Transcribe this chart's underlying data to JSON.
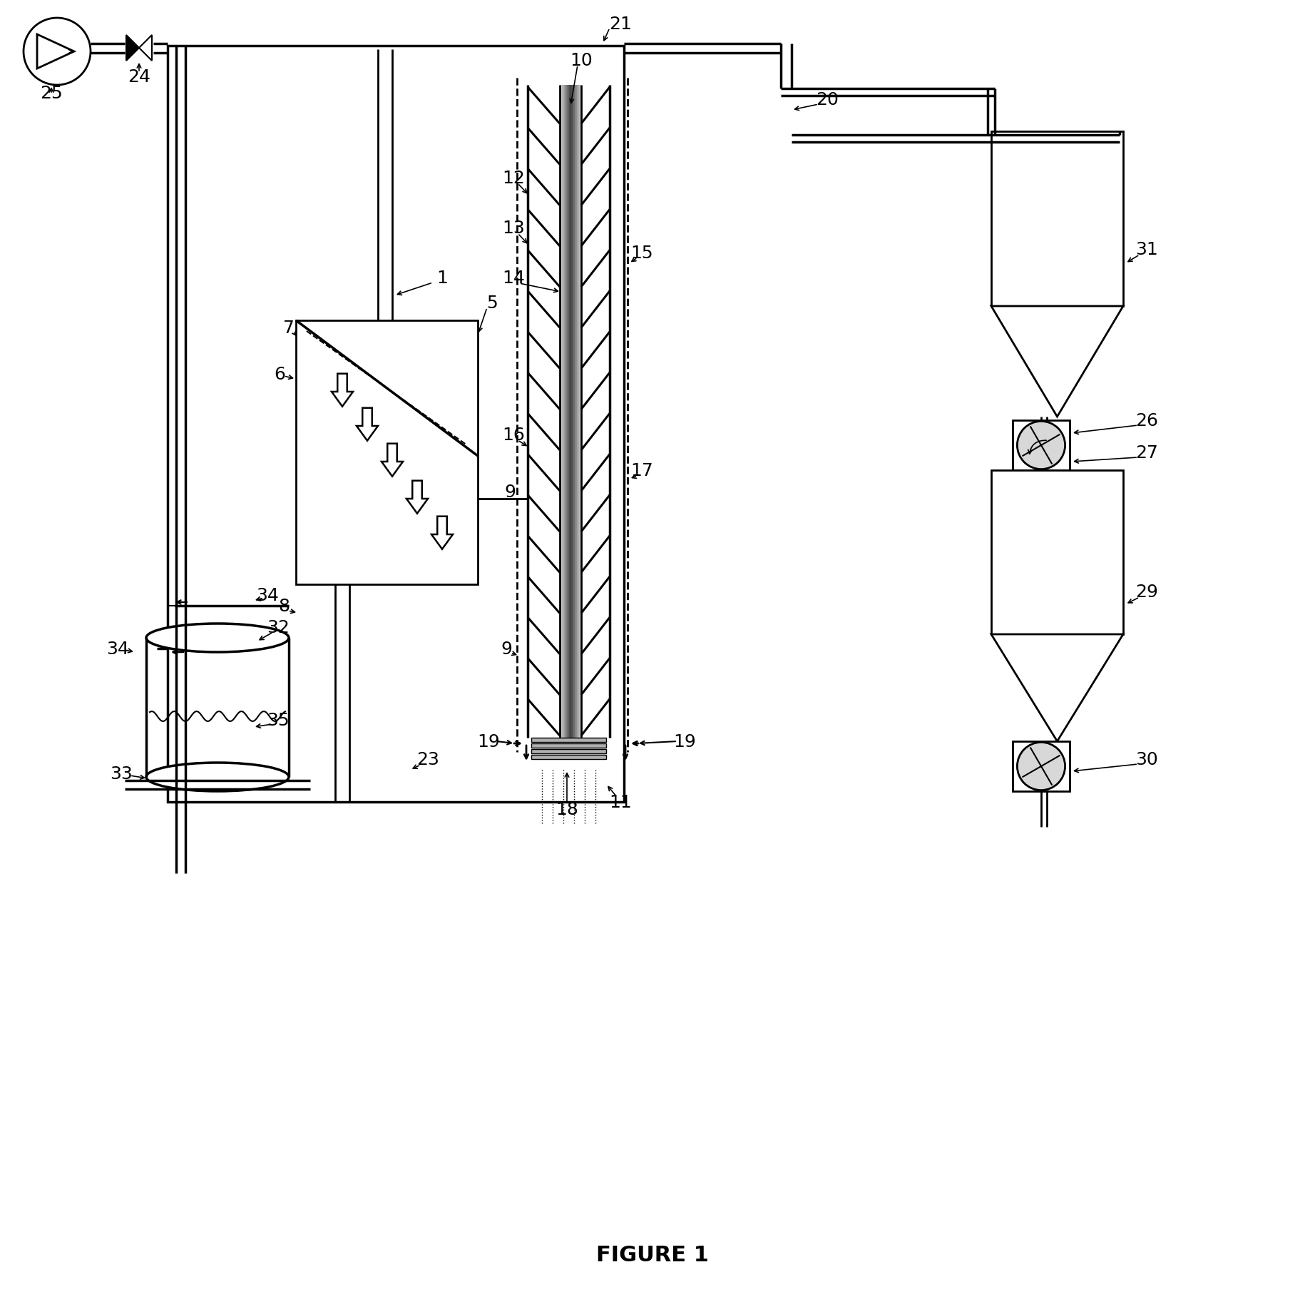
{
  "title": "FIGURE 1",
  "bg": "#ffffff",
  "lw": 2.0,
  "lw_thick": 2.5,
  "figsize": [
    18.31,
    18.4
  ],
  "dpi": 100
}
